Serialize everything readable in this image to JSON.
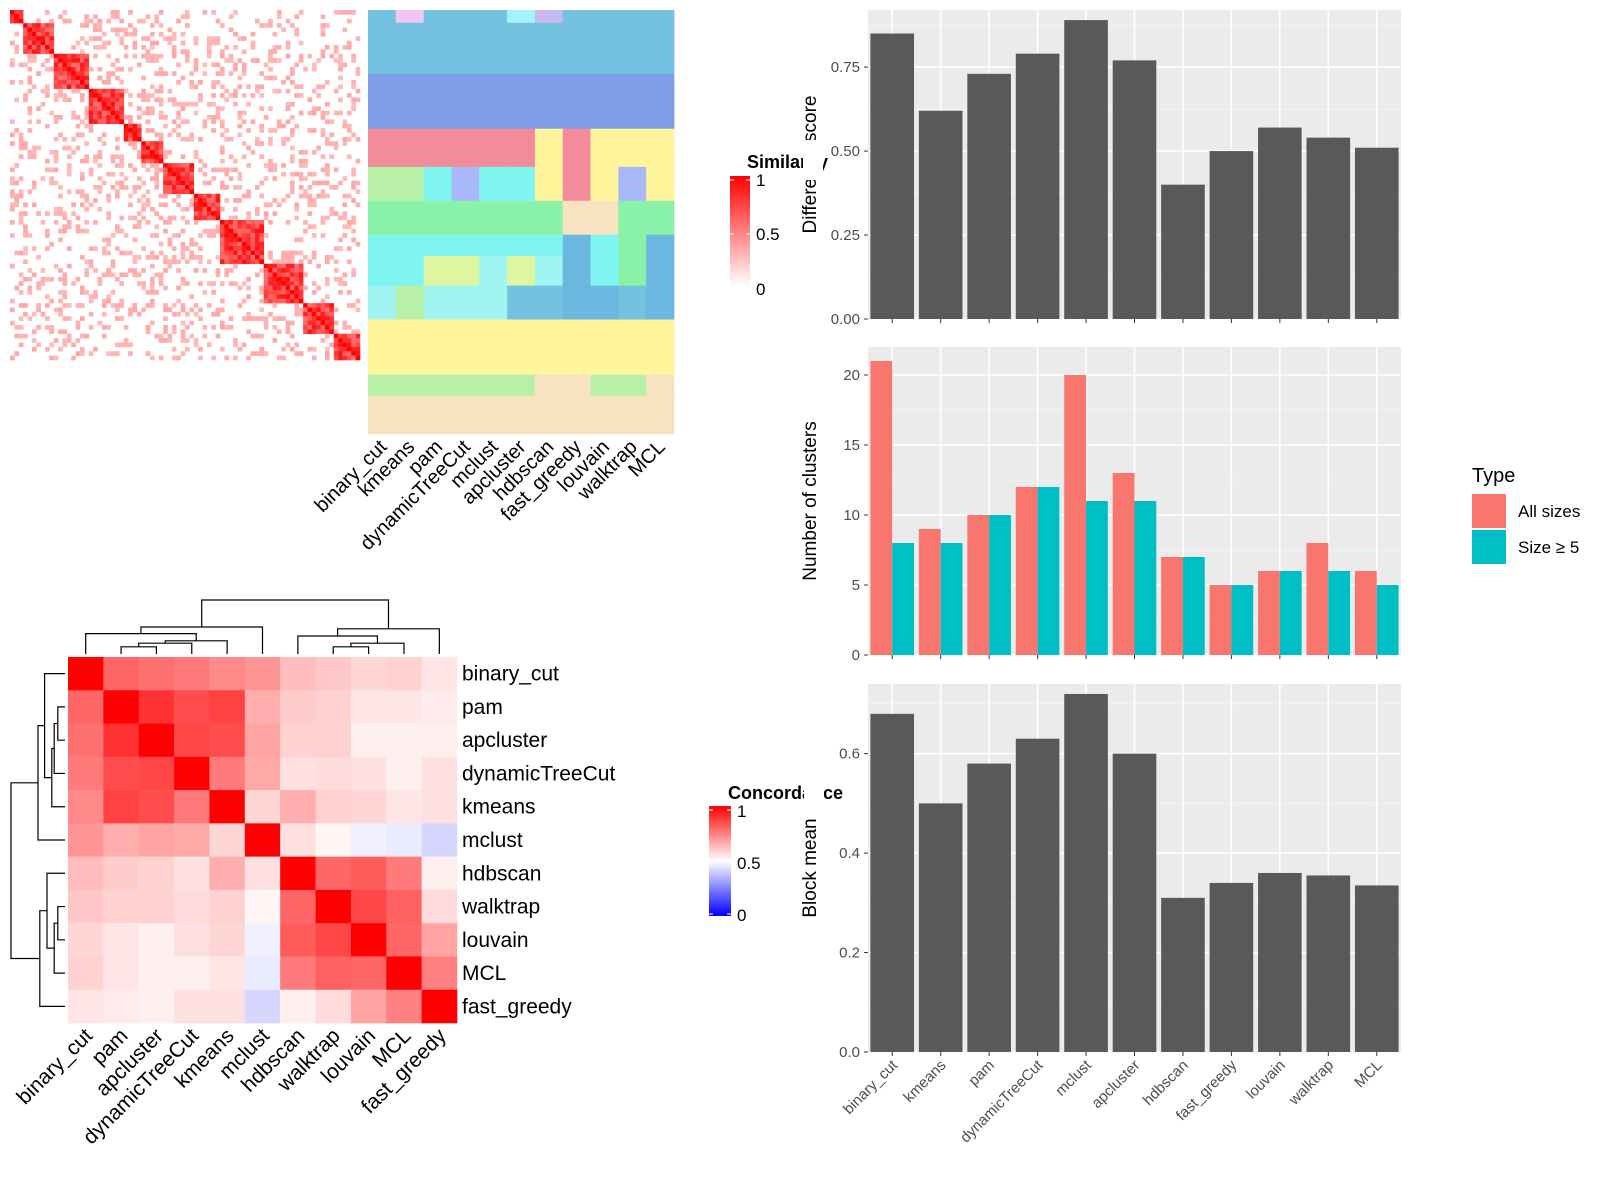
{
  "chart_data": [
    {
      "type": "heatmap",
      "name": "similarity-heatmap",
      "legend_title": "Similarity",
      "legend_ticks": [
        "1",
        "0.5",
        "0"
      ],
      "methods": [
        "binary_cut",
        "kmeans",
        "pam",
        "dynamicTreeCut",
        "mclust",
        "apcluster",
        "hdbscan",
        "fast_greedy",
        "louvain",
        "walktrap",
        "MCL"
      ],
      "diagonal_blocks": [
        [
          0.0,
          0.04
        ],
        [
          0.04,
          0.13
        ],
        [
          0.13,
          0.22
        ],
        [
          0.22,
          0.32
        ],
        [
          0.32,
          0.38
        ],
        [
          0.38,
          0.44
        ],
        [
          0.44,
          0.52
        ],
        [
          0.52,
          0.6
        ],
        [
          0.6,
          0.72
        ],
        [
          0.72,
          0.84
        ],
        [
          0.84,
          0.92
        ],
        [
          0.92,
          1.0
        ]
      ],
      "cluster_bands": [
        {
          "y0": 0.0,
          "y1": 0.03,
          "colors": [
            "#74c1e0",
            "#f2c6f2",
            "#74c1e0",
            "#74c1e0",
            "#74c1e0",
            "#a6f4ff",
            "#c8b8f0",
            "#74c1e0",
            "#74c1e0",
            "#74c1e0",
            "#74c1e0"
          ]
        },
        {
          "y0": 0.03,
          "y1": 0.15,
          "colors": [
            "#74c1e0",
            "#74c1e0",
            "#74c1e0",
            "#74c1e0",
            "#74c1e0",
            "#74c1e0",
            "#74c1e0",
            "#74c1e0",
            "#74c1e0",
            "#74c1e0",
            "#74c1e0"
          ]
        },
        {
          "y0": 0.15,
          "y1": 0.28,
          "colors": [
            "#7f9de8",
            "#7f9de8",
            "#7f9de8",
            "#7f9de8",
            "#7f9de8",
            "#7f9de8",
            "#7f9de8",
            "#7f9de8",
            "#7f9de8",
            "#7f9de8",
            "#7f9de8"
          ]
        },
        {
          "y0": 0.28,
          "y1": 0.37,
          "colors": [
            "#f28c9a",
            "#f28c9a",
            "#f28c9a",
            "#f28c9a",
            "#f28c9a",
            "#f28c9a",
            "#fff59d",
            "#f28c9a",
            "#fff59d",
            "#fff59d",
            "#fff59d"
          ]
        },
        {
          "y0": 0.37,
          "y1": 0.45,
          "colors": [
            "#b8f0a8",
            "#b8f0a8",
            "#7ff5f2",
            "#a8b8f8",
            "#7ff5f2",
            "#7ff5f2",
            "#fff59d",
            "#f28c9a",
            "#fff59d",
            "#a8b8f8",
            "#fff59d"
          ]
        },
        {
          "y0": 0.45,
          "y1": 0.53,
          "colors": [
            "#8af2a8",
            "#8af2a8",
            "#8af2a8",
            "#8af2a8",
            "#8af2a8",
            "#8af2a8",
            "#8af2a8",
            "#f7e3c0",
            "#f7e3c0",
            "#8af2a8",
            "#8af2a8"
          ]
        },
        {
          "y0": 0.53,
          "y1": 0.58,
          "colors": [
            "#7ff5f2",
            "#7ff5f2",
            "#7ff5f2",
            "#7ff5f2",
            "#7ff5f2",
            "#7ff5f2",
            "#7ff5f2",
            "#6cb7e0",
            "#7ff5f2",
            "#8af2a8",
            "#6cb7e0"
          ]
        },
        {
          "y0": 0.58,
          "y1": 0.65,
          "colors": [
            "#7ff5f2",
            "#7ff5f2",
            "#ddf7a0",
            "#ddf7a0",
            "#a0f5f0",
            "#ddf7a0",
            "#a0f5f0",
            "#6cb7e0",
            "#7ff5f2",
            "#8af2a8",
            "#6cb7e0"
          ]
        },
        {
          "y0": 0.65,
          "y1": 0.73,
          "colors": [
            "#a0f5f0",
            "#b8f0a8",
            "#a0f5f0",
            "#a0f5f0",
            "#a0f5f0",
            "#74c1e0",
            "#74c1e0",
            "#6cb7e0",
            "#6cb7e0",
            "#74c1e0",
            "#6cb7e0"
          ]
        },
        {
          "y0": 0.73,
          "y1": 0.86,
          "colors": [
            "#fff59d",
            "#fff59d",
            "#fff59d",
            "#fff59d",
            "#fff59d",
            "#fff59d",
            "#fff59d",
            "#fff59d",
            "#fff59d",
            "#fff59d",
            "#fff59d"
          ]
        },
        {
          "y0": 0.86,
          "y1": 0.91,
          "colors": [
            "#b8f0a8",
            "#b8f0a8",
            "#b8f0a8",
            "#b8f0a8",
            "#b8f0a8",
            "#b8f0a8",
            "#f7e3c0",
            "#f7e3c0",
            "#b8f0a8",
            "#b8f0a8",
            "#f7e3c0"
          ]
        },
        {
          "y0": 0.91,
          "y1": 1.0,
          "colors": [
            "#f7e3c0",
            "#f7e3c0",
            "#f7e3c0",
            "#f7e3c0",
            "#f7e3c0",
            "#f7e3c0",
            "#f7e3c0",
            "#f7e3c0",
            "#f7e3c0",
            "#f7e3c0",
            "#f7e3c0"
          ]
        }
      ]
    },
    {
      "type": "heatmap",
      "name": "concordance-heatmap",
      "legend_title": "Concordance",
      "legend_ticks": [
        "1",
        "0.5",
        "0"
      ],
      "labels": [
        "binary_cut",
        "pam",
        "apcluster",
        "dynamicTreeCut",
        "kmeans",
        "mclust",
        "hdbscan",
        "walktrap",
        "louvain",
        "MCL",
        "fast_greedy"
      ],
      "matrix": [
        [
          1.0,
          0.8,
          0.78,
          0.76,
          0.73,
          0.71,
          0.63,
          0.61,
          0.58,
          0.59,
          0.55
        ],
        [
          0.8,
          1.0,
          0.9,
          0.85,
          0.87,
          0.66,
          0.6,
          0.59,
          0.55,
          0.55,
          0.54
        ],
        [
          0.78,
          0.9,
          1.0,
          0.86,
          0.85,
          0.68,
          0.59,
          0.59,
          0.53,
          0.53,
          0.53
        ],
        [
          0.76,
          0.85,
          0.86,
          1.0,
          0.76,
          0.67,
          0.56,
          0.57,
          0.56,
          0.53,
          0.56
        ],
        [
          0.73,
          0.87,
          0.85,
          0.76,
          1.0,
          0.58,
          0.66,
          0.59,
          0.58,
          0.55,
          0.56
        ],
        [
          0.71,
          0.66,
          0.68,
          0.67,
          0.58,
          1.0,
          0.56,
          0.52,
          0.47,
          0.46,
          0.42
        ],
        [
          0.63,
          0.6,
          0.59,
          0.56,
          0.66,
          0.56,
          1.0,
          0.8,
          0.82,
          0.76,
          0.53
        ],
        [
          0.61,
          0.59,
          0.59,
          0.57,
          0.59,
          0.52,
          0.8,
          1.0,
          0.86,
          0.81,
          0.57
        ],
        [
          0.58,
          0.55,
          0.53,
          0.56,
          0.58,
          0.47,
          0.82,
          0.86,
          1.0,
          0.8,
          0.68
        ],
        [
          0.59,
          0.55,
          0.53,
          0.53,
          0.55,
          0.46,
          0.76,
          0.81,
          0.8,
          1.0,
          0.75
        ],
        [
          0.55,
          0.54,
          0.53,
          0.56,
          0.56,
          0.42,
          0.53,
          0.57,
          0.68,
          0.75,
          1.0
        ]
      ]
    },
    {
      "type": "bar",
      "name": "difference-score",
      "categories": [
        "binary_cut",
        "kmeans",
        "pam",
        "dynamicTreeCut",
        "mclust",
        "apcluster",
        "hdbscan",
        "fast_greedy",
        "louvain",
        "walktrap",
        "MCL"
      ],
      "values": [
        0.85,
        0.62,
        0.73,
        0.79,
        0.89,
        0.77,
        0.4,
        0.5,
        0.57,
        0.54,
        0.51
      ],
      "ylabel": "Difference score",
      "ylim": [
        0,
        0.92
      ],
      "yticks": [
        0,
        0.25,
        0.5,
        0.75
      ],
      "ytick_labels": [
        "0.00",
        "0.25",
        "0.50",
        "0.75"
      ],
      "grid": true
    },
    {
      "type": "bar",
      "name": "number-of-clusters",
      "categories": [
        "binary_cut",
        "kmeans",
        "pam",
        "dynamicTreeCut",
        "mclust",
        "apcluster",
        "hdbscan",
        "fast_greedy",
        "louvain",
        "walktrap",
        "MCL"
      ],
      "series": [
        {
          "name": "All sizes",
          "color": "#f8766d",
          "values": [
            21,
            9,
            10,
            12,
            20,
            13,
            7,
            5,
            6,
            8,
            6
          ]
        },
        {
          "name": "Size ≥ 5",
          "color": "#00bfc4",
          "values": [
            8,
            8,
            10,
            12,
            11,
            11,
            7,
            5,
            6,
            6,
            5
          ]
        }
      ],
      "ylabel": "Number of clusters",
      "ylim": [
        0,
        22
      ],
      "yticks": [
        0,
        5,
        10,
        15,
        20
      ],
      "ytick_labels": [
        "0",
        "5",
        "10",
        "15",
        "20"
      ],
      "legend_title": "Type",
      "legend_position": "right",
      "grid": true
    },
    {
      "type": "bar",
      "name": "block-mean",
      "categories": [
        "binary_cut",
        "kmeans",
        "pam",
        "dynamicTreeCut",
        "mclust",
        "apcluster",
        "hdbscan",
        "fast_greedy",
        "louvain",
        "walktrap",
        "MCL"
      ],
      "values": [
        0.68,
        0.5,
        0.58,
        0.63,
        0.72,
        0.6,
        0.31,
        0.34,
        0.36,
        0.355,
        0.335
      ],
      "ylabel": "Block mean",
      "ylim": [
        0,
        0.74
      ],
      "yticks": [
        0,
        0.2,
        0.4,
        0.6
      ],
      "ytick_labels": [
        "0.0",
        "0.2",
        "0.4",
        "0.6"
      ],
      "grid": true
    }
  ]
}
